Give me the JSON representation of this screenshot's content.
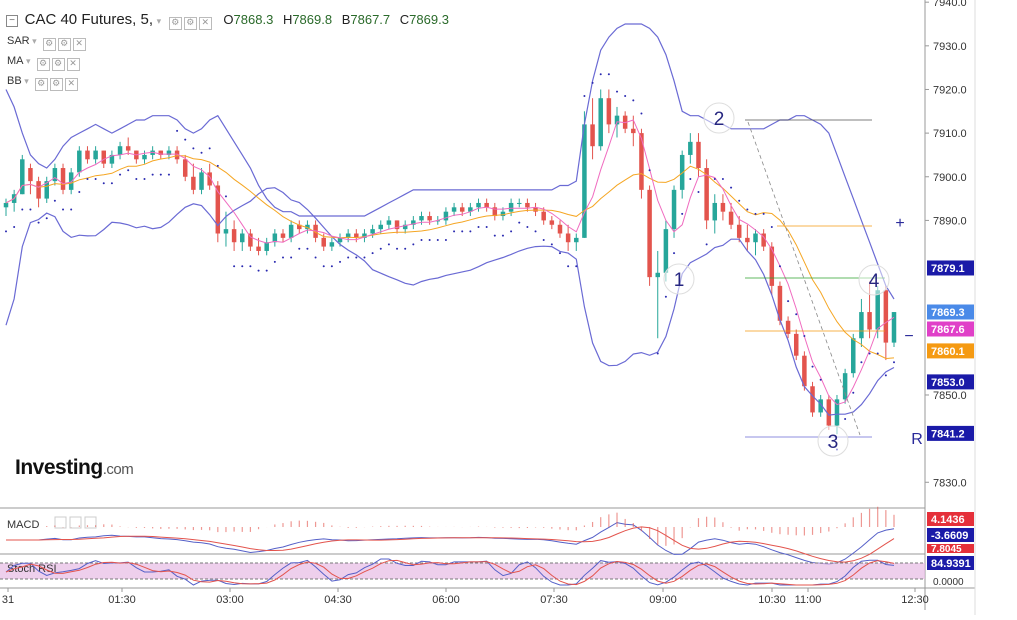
{
  "header": {
    "collapse_icon": "minus-square-icon",
    "symbol": "CAC 40 Futures, 5,",
    "dropdown_icon": "chevron-down-icon",
    "open_label": "O",
    "open": "7868.3",
    "high_label": "H",
    "high": "7869.8",
    "low_label": "B",
    "low": "7867.7",
    "close_label": "C",
    "close": "7869.3"
  },
  "indicators": [
    {
      "label": "SAR"
    },
    {
      "label": "MA"
    },
    {
      "label": "BB"
    }
  ],
  "brand": {
    "logo_text": "Investing",
    "logo_suffix": ".com"
  },
  "colors": {
    "up": "#26a69a",
    "down": "#e3544d",
    "bb": "#6a6ad4",
    "ma_fast": "#f06cc0",
    "ma_slow": "#f5a623",
    "sar": "#2a2ab0",
    "axis_blue": "#1a1aa8",
    "magenta": "#e040c8",
    "orange": "#f59a12",
    "red_label": "#e5303a"
  },
  "chart_data": {
    "type": "candlestick",
    "title": "CAC 40 Futures, 5,",
    "x_ticks": [
      "31",
      "01:30",
      "03:00",
      "04:30",
      "06:00",
      "07:30",
      "09:00",
      "10:30",
      "11:00",
      "12:30"
    ],
    "y_ticks": [
      "7940.0",
      "7930.0",
      "7920.0",
      "7910.0",
      "7900.0",
      "7890.0",
      "7880.0",
      "7870.0",
      "7850.0",
      "7840.0",
      "7830.0"
    ],
    "ylim": [
      7828,
      7940.5
    ],
    "candles": [
      [
        7893,
        7895,
        7891,
        7894
      ],
      [
        7894,
        7897,
        7892,
        7896
      ],
      [
        7896,
        7905,
        7896,
        7904
      ],
      [
        7902,
        7903,
        7896,
        7899
      ],
      [
        7899,
        7900,
        7893,
        7895
      ],
      [
        7895,
        7900,
        7894,
        7899
      ],
      [
        7899,
        7903,
        7898,
        7902
      ],
      [
        7902,
        7903,
        7896,
        7897
      ],
      [
        7897,
        7902,
        7896,
        7901
      ],
      [
        7901,
        7907,
        7900,
        7906
      ],
      [
        7906,
        7907,
        7903,
        7904
      ],
      [
        7904,
        7907,
        7903,
        7906
      ],
      [
        7906,
        7906,
        7902,
        7903
      ],
      [
        7903,
        7906,
        7902,
        7905
      ],
      [
        7905,
        7908,
        7904,
        7907
      ],
      [
        7907,
        7909,
        7905,
        7906
      ],
      [
        7906,
        7906,
        7903,
        7904
      ],
      [
        7904,
        7906,
        7903,
        7905
      ],
      [
        7905,
        7907,
        7904,
        7906
      ],
      [
        7906,
        7906,
        7904,
        7905
      ],
      [
        7905,
        7907,
        7904,
        7906
      ],
      [
        7906,
        7907,
        7903,
        7904
      ],
      [
        7904,
        7905,
        7899,
        7900
      ],
      [
        7900,
        7903,
        7896,
        7897
      ],
      [
        7897,
        7902,
        7896,
        7901
      ],
      [
        7901,
        7903,
        7897,
        7898
      ],
      [
        7898,
        7899,
        7885,
        7887
      ],
      [
        7887,
        7892,
        7884,
        7888
      ],
      [
        7888,
        7890,
        7883,
        7885
      ],
      [
        7885,
        7888,
        7883,
        7887
      ],
      [
        7887,
        7888,
        7883,
        7884
      ],
      [
        7884,
        7886,
        7882,
        7883
      ],
      [
        7883,
        7886,
        7882,
        7885
      ],
      [
        7885,
        7888,
        7884,
        7887
      ],
      [
        7887,
        7888,
        7885,
        7886
      ],
      [
        7886,
        7890,
        7885,
        7889
      ],
      [
        7889,
        7890,
        7887,
        7888
      ],
      [
        7888,
        7890,
        7887,
        7889
      ],
      [
        7889,
        7890,
        7885,
        7886
      ],
      [
        7886,
        7887,
        7883,
        7884
      ],
      [
        7884,
        7886,
        7883,
        7885
      ],
      [
        7885,
        7887,
        7884,
        7886
      ],
      [
        7886,
        7888,
        7885,
        7887
      ],
      [
        7887,
        7888,
        7885,
        7886
      ],
      [
        7886,
        7888,
        7885,
        7887
      ],
      [
        7887,
        7889,
        7886,
        7888
      ],
      [
        7888,
        7890,
        7887,
        7889
      ],
      [
        7889,
        7891,
        7888,
        7890
      ],
      [
        7890,
        7890,
        7887,
        7888
      ],
      [
        7888,
        7890,
        7887,
        7889
      ],
      [
        7889,
        7891,
        7888,
        7890
      ],
      [
        7890,
        7892,
        7889,
        7891
      ],
      [
        7891,
        7892,
        7889,
        7890
      ],
      [
        7890,
        7891,
        7889,
        7890
      ],
      [
        7890,
        7893,
        7889,
        7892
      ],
      [
        7892,
        7894,
        7891,
        7893
      ],
      [
        7893,
        7894,
        7891,
        7892
      ],
      [
        7892,
        7894,
        7891,
        7893
      ],
      [
        7893,
        7895,
        7892,
        7894
      ],
      [
        7894,
        7895,
        7892,
        7893
      ],
      [
        7893,
        7894,
        7890,
        7891
      ],
      [
        7891,
        7893,
        7890,
        7892
      ],
      [
        7892,
        7895,
        7891,
        7894
      ],
      [
        7894,
        7895,
        7893,
        7894
      ],
      [
        7894,
        7895,
        7892,
        7893
      ],
      [
        7893,
        7894,
        7891,
        7892
      ],
      [
        7892,
        7893,
        7889,
        7890
      ],
      [
        7890,
        7891,
        7888,
        7889
      ],
      [
        7889,
        7890,
        7886,
        7887
      ],
      [
        7887,
        7889,
        7883,
        7885
      ],
      [
        7885,
        7887,
        7883,
        7886
      ],
      [
        7886,
        7915,
        7886,
        7912
      ],
      [
        7912,
        7918,
        7904,
        7907
      ],
      [
        7907,
        7920,
        7906,
        7918
      ],
      [
        7918,
        7920,
        7910,
        7912
      ],
      [
        7912,
        7916,
        7909,
        7914
      ],
      [
        7914,
        7915,
        7910,
        7911
      ],
      [
        7911,
        7914,
        7907,
        7910
      ],
      [
        7910,
        7911,
        7895,
        7897
      ],
      [
        7897,
        7898,
        7875,
        7877
      ],
      [
        7877,
        7883,
        7863,
        7878
      ],
      [
        7878,
        7890,
        7876,
        7888
      ],
      [
        7888,
        7898,
        7886,
        7897
      ],
      [
        7897,
        7906,
        7895,
        7905
      ],
      [
        7905,
        7910,
        7903,
        7908
      ],
      [
        7908,
        7910,
        7900,
        7902
      ],
      [
        7902,
        7904,
        7888,
        7890
      ],
      [
        7890,
        7896,
        7887,
        7894
      ],
      [
        7894,
        7896,
        7890,
        7892
      ],
      [
        7892,
        7894,
        7888,
        7889
      ],
      [
        7889,
        7891,
        7885,
        7886
      ],
      [
        7886,
        7889,
        7883,
        7885
      ],
      [
        7885,
        7888,
        7882,
        7887
      ],
      [
        7887,
        7888,
        7883,
        7884
      ],
      [
        7884,
        7885,
        7873,
        7875
      ],
      [
        7875,
        7876,
        7866,
        7867
      ],
      [
        7867,
        7868,
        7863,
        7864
      ],
      [
        7864,
        7865,
        7858,
        7859
      ],
      [
        7859,
        7860,
        7851,
        7852
      ],
      [
        7852,
        7853,
        7845,
        7846
      ],
      [
        7846,
        7850,
        7845,
        7849
      ],
      [
        7849,
        7850,
        7842,
        7843
      ],
      [
        7843,
        7850,
        7841,
        7849
      ],
      [
        7849,
        7856,
        7848,
        7855
      ],
      [
        7855,
        7864,
        7854,
        7863
      ],
      [
        7863,
        7872,
        7861,
        7869
      ],
      [
        7869,
        7876,
        7863,
        7865
      ],
      [
        7865,
        7875,
        7863,
        7874
      ],
      [
        7874,
        7875,
        7858,
        7862
      ],
      [
        7862,
        7869,
        7861,
        7869
      ]
    ],
    "bb_upper": [
      7920,
      7916,
      7910,
      7905,
      7903,
      7902,
      7904,
      7907,
      7909,
      7910,
      7911,
      7912,
      7911,
      7910,
      7911,
      7912,
      7913,
      7913,
      7914,
      7914,
      7914,
      7913,
      7911,
      7910,
      7911,
      7913,
      7914,
      7911,
      7908,
      7905,
      7902,
      7898,
      7895,
      7893,
      7892,
      7892,
      7891,
      7891,
      7891,
      7891,
      7891,
      7891,
      7891,
      7891,
      7891,
      7892,
      7893,
      7894,
      7895,
      7896,
      7897,
      7897,
      7897,
      7897,
      7897,
      7897,
      7897,
      7897,
      7897,
      7897,
      7897,
      7897,
      7897,
      7897,
      7897,
      7897,
      7897,
      7897,
      7898,
      7898,
      7899,
      7912,
      7922,
      7929,
      7932,
      7934,
      7935,
      7935,
      7935,
      7934,
      7932,
      7928,
      7922,
      7915,
      7914,
      7914,
      7913,
      7912,
      7912,
      7911,
      7911,
      7911,
      7911,
      7911,
      7912,
      7913,
      7913,
      7914,
      7914,
      7913,
      7912,
      7910,
      7905,
      7900,
      7895,
      7890,
      7885,
      7880,
      7875,
      7872
    ]
  },
  "price_labels": [
    {
      "value": "7940.0"
    },
    {
      "value": "7930.0"
    },
    {
      "value": "7920.0"
    },
    {
      "value": "7910.0"
    },
    {
      "value": "7900.0"
    },
    {
      "value": "7890.0"
    },
    {
      "value": "7879.1"
    },
    {
      "value": "7869.3"
    },
    {
      "value": "7867.6"
    },
    {
      "value": "7860.1"
    },
    {
      "value": "7853.0"
    },
    {
      "value": "7850.0"
    },
    {
      "value": "7841.2"
    },
    {
      "value": "7830.0"
    }
  ],
  "waves": [
    "1",
    "2",
    "3",
    "4"
  ],
  "side_markers": {
    "plus": "+",
    "minus": "−",
    "r": "R"
  },
  "macd": {
    "label": "MACD",
    "value_main": "4.1436",
    "value_signal": "-3.6609",
    "value_hist": "7.8045"
  },
  "stoch": {
    "label": "Stoch RSI",
    "value_k": "84.9391",
    "value_zero": "0.0000"
  },
  "time_labels": [
    "31",
    "01:30",
    "03:00",
    "04:30",
    "06:00",
    "07:30",
    "09:00",
    "10:30",
    "11:00",
    "12:30"
  ]
}
